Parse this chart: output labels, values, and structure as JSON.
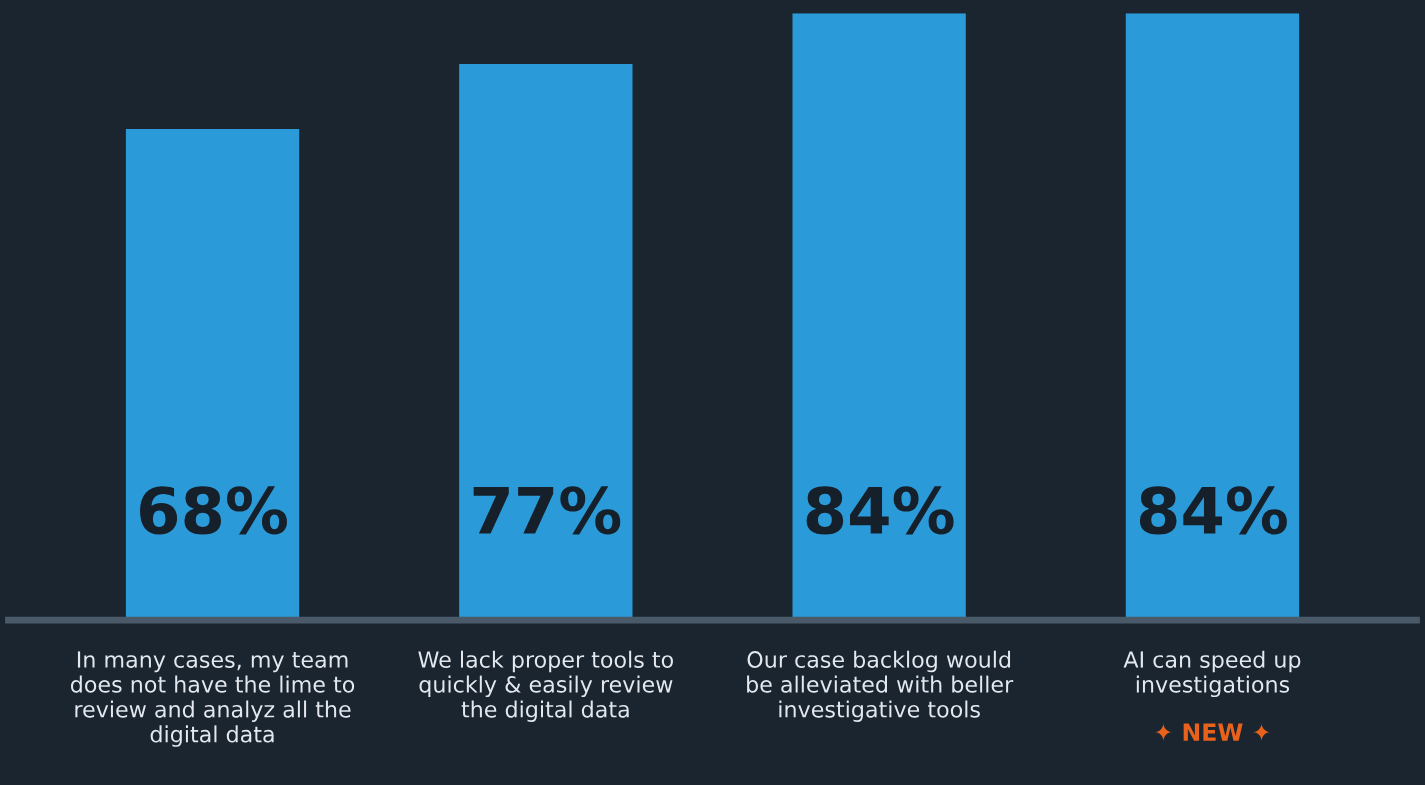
{
  "chart_data": {
    "type": "bar",
    "categories": [
      "In many cases, my team\ndoes not have the lime to\nreview and analyz all the\ndigital data",
      "We lack proper tools to\nquickly & easily review\nthe digital data",
      "Our case backlog would\nbe alleviated with beller\ninvestigative tools",
      "AI can speed up\ninvestigations"
    ],
    "values": [
      68,
      77,
      84,
      84
    ],
    "color": "#2b9ad8",
    "data_labels": true,
    "value_labels": [
      "68%",
      "77%",
      "84%",
      "84%"
    ],
    "annotations": [
      "✦ NEW ✦"
    ],
    "grid": false,
    "legend": false
  }
}
